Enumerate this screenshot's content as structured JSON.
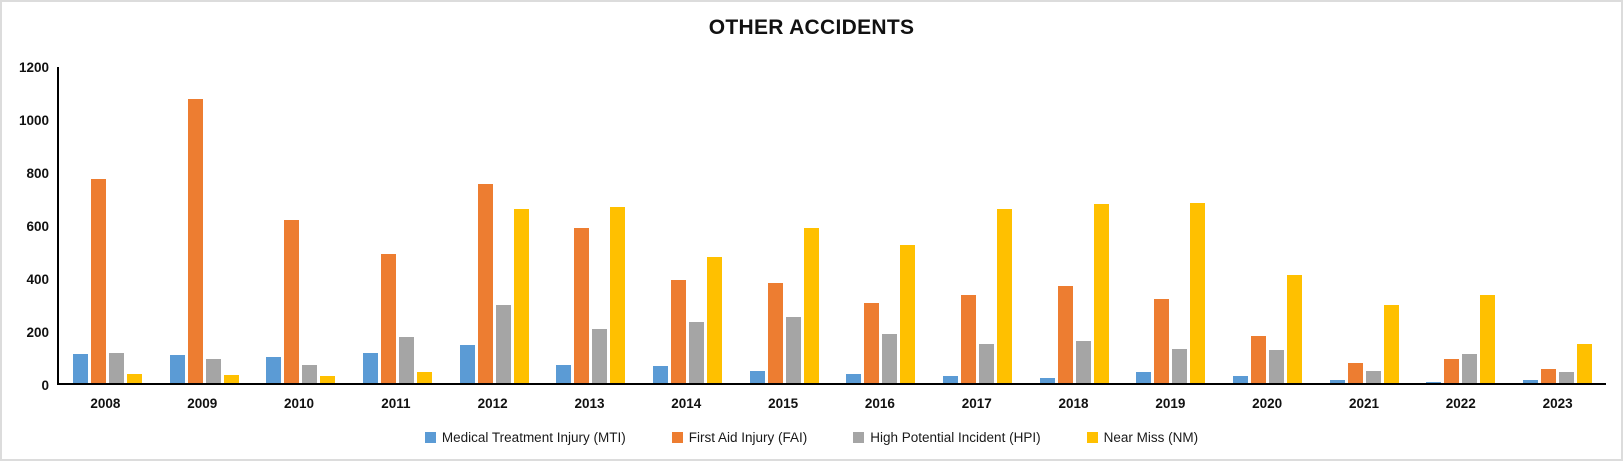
{
  "chart_data": {
    "type": "bar",
    "title": "OTHER ACCIDENTS",
    "categories": [
      "2008",
      "2009",
      "2010",
      "2011",
      "2012",
      "2013",
      "2014",
      "2015",
      "2016",
      "2017",
      "2018",
      "2019",
      "2020",
      "2021",
      "2022",
      "2023"
    ],
    "series": [
      {
        "name": "Medical Treatment Injury (MTI)",
        "short": "mti",
        "color": "#5B9BD5",
        "values": [
          110,
          105,
          100,
          115,
          145,
          70,
          65,
          45,
          35,
          25,
          20,
          40,
          25,
          10,
          5,
          10
        ]
      },
      {
        "name": "First Aid Injury (FAI)",
        "short": "fai",
        "color": "#ED7D31",
        "values": [
          775,
          1080,
          620,
          490,
          755,
          590,
          390,
          380,
          305,
          335,
          370,
          320,
          180,
          75,
          90,
          55
        ]
      },
      {
        "name": "High Potential Incident (HPI)",
        "short": "hpi",
        "color": "#A5A5A5",
        "values": [
          115,
          90,
          70,
          175,
          295,
          205,
          230,
          250,
          185,
          150,
          160,
          130,
          125,
          45,
          110,
          40
        ]
      },
      {
        "name": "Near Miss (NM)",
        "short": "nm",
        "color": "#FFC000",
        "values": [
          35,
          30,
          25,
          40,
          660,
          670,
          480,
          590,
          525,
          660,
          680,
          685,
          410,
          295,
          335,
          150
        ]
      }
    ],
    "xlabel": "",
    "ylabel": "",
    "ylim": [
      0,
      1200
    ],
    "yticks": [
      0,
      200,
      400,
      600,
      800,
      1000,
      1200
    ],
    "grid": false,
    "legend_position": "bottom",
    "axis_color": "#000000",
    "text_color": "#111111"
  }
}
